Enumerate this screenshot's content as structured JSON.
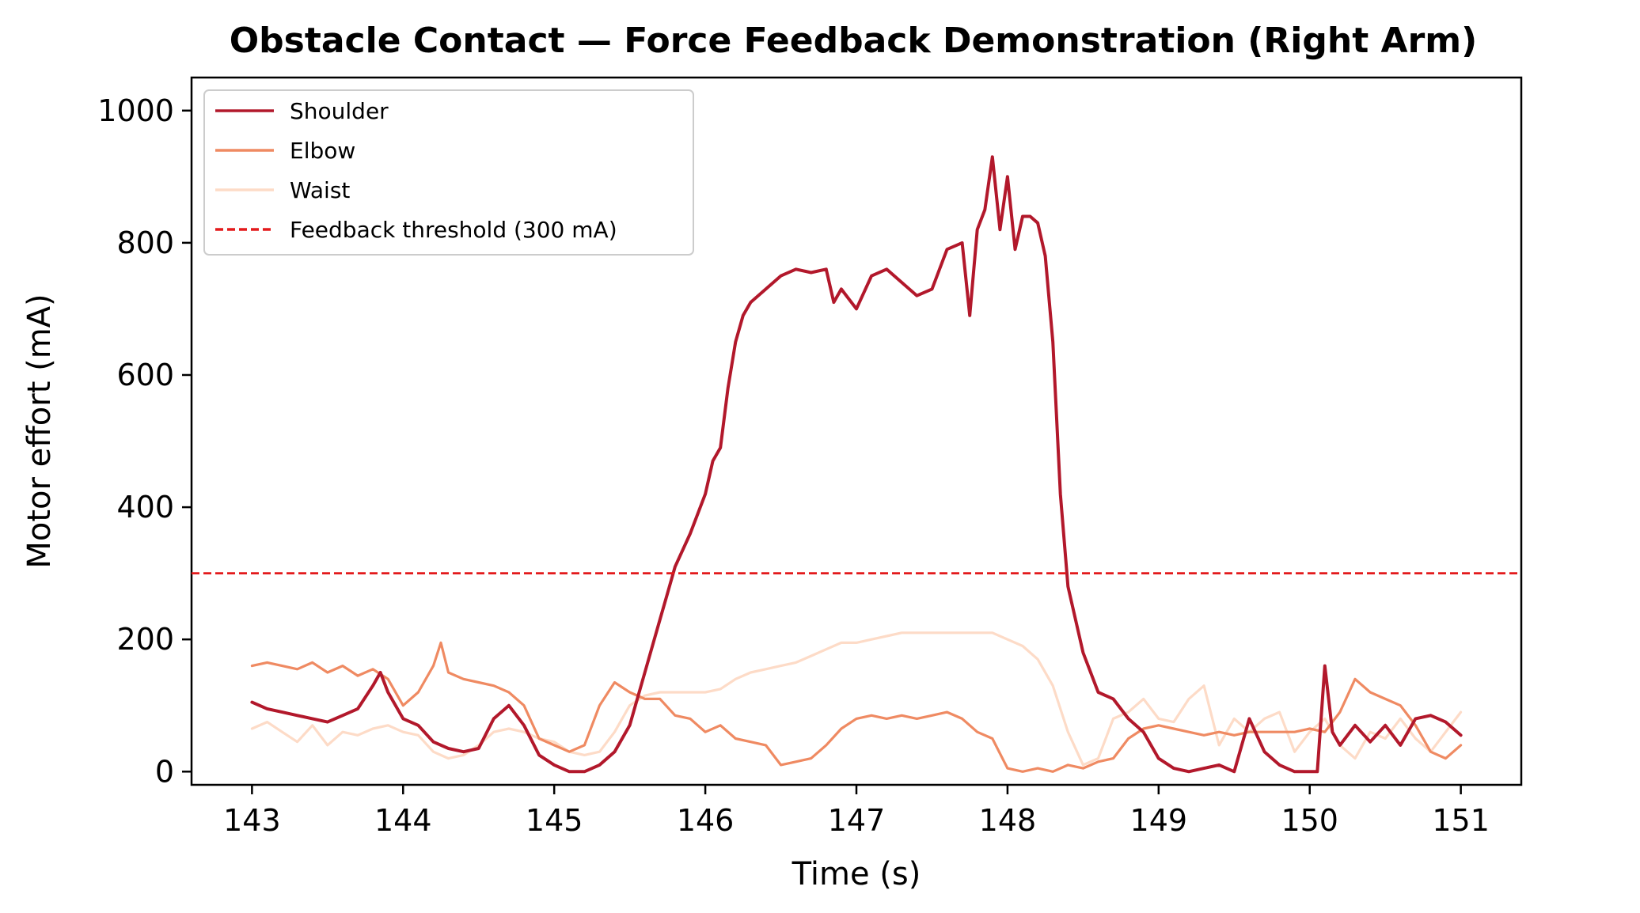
{
  "chart_data": {
    "type": "line",
    "title": "Obstacle Contact — Force Feedback Demonstration (Right Arm)",
    "xlabel": "Time (s)",
    "ylabel": "Motor effort (mA)",
    "xlim": [
      142.6,
      151.4
    ],
    "ylim": [
      -20,
      1050
    ],
    "xticks": [
      143,
      144,
      145,
      146,
      147,
      148,
      149,
      150,
      151
    ],
    "yticks": [
      0,
      200,
      400,
      600,
      800,
      1000
    ],
    "grid": false,
    "legend_position": "top-left",
    "series": [
      {
        "name": "Shoulder",
        "color": "#b2182b",
        "x": [
          143.0,
          143.1,
          143.2,
          143.3,
          143.4,
          143.5,
          143.6,
          143.7,
          143.8,
          143.85,
          143.9,
          144.0,
          144.1,
          144.2,
          144.3,
          144.4,
          144.5,
          144.6,
          144.7,
          144.8,
          144.9,
          145.0,
          145.1,
          145.2,
          145.3,
          145.4,
          145.5,
          145.6,
          145.7,
          145.75,
          145.8,
          145.9,
          146.0,
          146.05,
          146.1,
          146.15,
          146.2,
          146.25,
          146.3,
          146.4,
          146.5,
          146.6,
          146.7,
          146.8,
          146.85,
          146.9,
          147.0,
          147.1,
          147.2,
          147.3,
          147.4,
          147.5,
          147.6,
          147.7,
          147.75,
          147.8,
          147.85,
          147.9,
          147.95,
          148.0,
          148.05,
          148.1,
          148.15,
          148.2,
          148.25,
          148.3,
          148.35,
          148.4,
          148.5,
          148.6,
          148.7,
          148.8,
          148.9,
          149.0,
          149.1,
          149.2,
          149.3,
          149.4,
          149.5,
          149.6,
          149.7,
          149.8,
          149.9,
          150.0,
          150.05,
          150.1,
          150.15,
          150.2,
          150.3,
          150.4,
          150.5,
          150.6,
          150.7,
          150.8,
          150.9,
          151.0
        ],
        "y": [
          105,
          95,
          90,
          85,
          80,
          75,
          85,
          95,
          130,
          150,
          120,
          80,
          70,
          45,
          35,
          30,
          35,
          80,
          100,
          70,
          25,
          10,
          0,
          0,
          10,
          30,
          70,
          150,
          230,
          270,
          310,
          360,
          420,
          470,
          490,
          580,
          650,
          690,
          710,
          730,
          750,
          760,
          755,
          760,
          710,
          730,
          700,
          750,
          760,
          740,
          720,
          730,
          790,
          800,
          690,
          820,
          850,
          930,
          820,
          900,
          790,
          840,
          840,
          830,
          780,
          650,
          420,
          280,
          180,
          120,
          110,
          80,
          60,
          20,
          5,
          0,
          5,
          10,
          0,
          80,
          30,
          10,
          0,
          0,
          0,
          160,
          60,
          40,
          70,
          45,
          70,
          40,
          80,
          85,
          75,
          55
        ]
      },
      {
        "name": "Elbow",
        "color": "#ef8a62",
        "x": [
          143.0,
          143.1,
          143.2,
          143.3,
          143.4,
          143.5,
          143.6,
          143.7,
          143.8,
          143.9,
          144.0,
          144.1,
          144.2,
          144.25,
          144.3,
          144.4,
          144.5,
          144.6,
          144.7,
          144.8,
          144.9,
          145.0,
          145.1,
          145.2,
          145.3,
          145.4,
          145.5,
          145.6,
          145.7,
          145.8,
          145.9,
          146.0,
          146.1,
          146.2,
          146.3,
          146.4,
          146.5,
          146.6,
          146.7,
          146.8,
          146.9,
          147.0,
          147.1,
          147.2,
          147.3,
          147.4,
          147.5,
          147.6,
          147.7,
          147.8,
          147.9,
          148.0,
          148.1,
          148.2,
          148.3,
          148.4,
          148.5,
          148.6,
          148.7,
          148.8,
          148.9,
          149.0,
          149.1,
          149.2,
          149.3,
          149.4,
          149.5,
          149.6,
          149.7,
          149.8,
          149.9,
          150.0,
          150.1,
          150.2,
          150.3,
          150.4,
          150.5,
          150.6,
          150.7,
          150.8,
          150.9,
          151.0
        ],
        "y": [
          160,
          165,
          160,
          155,
          165,
          150,
          160,
          145,
          155,
          140,
          100,
          120,
          160,
          195,
          150,
          140,
          135,
          130,
          120,
          100,
          50,
          40,
          30,
          40,
          100,
          135,
          120,
          110,
          110,
          85,
          80,
          60,
          70,
          50,
          45,
          40,
          10,
          15,
          20,
          40,
          65,
          80,
          85,
          80,
          85,
          80,
          85,
          90,
          80,
          60,
          50,
          5,
          0,
          5,
          0,
          10,
          5,
          15,
          20,
          50,
          65,
          70,
          65,
          60,
          55,
          60,
          55,
          60,
          60,
          60,
          60,
          65,
          60,
          90,
          140,
          120,
          110,
          100,
          70,
          30,
          20,
          40
        ]
      },
      {
        "name": "Waist",
        "color": "#fddbc7",
        "x": [
          143.0,
          143.1,
          143.2,
          143.3,
          143.4,
          143.5,
          143.6,
          143.7,
          143.8,
          143.9,
          144.0,
          144.1,
          144.2,
          144.3,
          144.4,
          144.5,
          144.6,
          144.7,
          144.8,
          144.9,
          145.0,
          145.1,
          145.2,
          145.3,
          145.4,
          145.5,
          145.6,
          145.7,
          145.8,
          145.9,
          146.0,
          146.1,
          146.2,
          146.3,
          146.4,
          146.5,
          146.6,
          146.7,
          146.8,
          146.9,
          147.0,
          147.1,
          147.2,
          147.3,
          147.4,
          147.5,
          147.6,
          147.7,
          147.8,
          147.9,
          148.0,
          148.1,
          148.2,
          148.3,
          148.4,
          148.5,
          148.6,
          148.7,
          148.8,
          148.9,
          149.0,
          149.1,
          149.2,
          149.3,
          149.4,
          149.5,
          149.6,
          149.7,
          149.8,
          149.9,
          150.0,
          150.1,
          150.2,
          150.3,
          150.4,
          150.5,
          150.6,
          150.7,
          150.8,
          150.9,
          151.0
        ],
        "y": [
          65,
          75,
          60,
          45,
          70,
          40,
          60,
          55,
          65,
          70,
          60,
          55,
          30,
          20,
          25,
          40,
          60,
          65,
          60,
          50,
          45,
          30,
          25,
          30,
          60,
          100,
          115,
          120,
          120,
          120,
          120,
          125,
          140,
          150,
          155,
          160,
          165,
          175,
          185,
          195,
          195,
          200,
          205,
          210,
          210,
          210,
          210,
          210,
          210,
          210,
          200,
          190,
          170,
          130,
          60,
          10,
          20,
          80,
          90,
          110,
          80,
          75,
          110,
          130,
          40,
          80,
          60,
          80,
          90,
          30,
          60,
          80,
          40,
          20,
          60,
          50,
          80,
          50,
          30,
          60,
          90
        ]
      }
    ],
    "reference_lines": [
      {
        "name": "Feedback threshold (300 mA)",
        "y": 300,
        "color": "#e31a1c",
        "style": "dashed"
      }
    ]
  }
}
